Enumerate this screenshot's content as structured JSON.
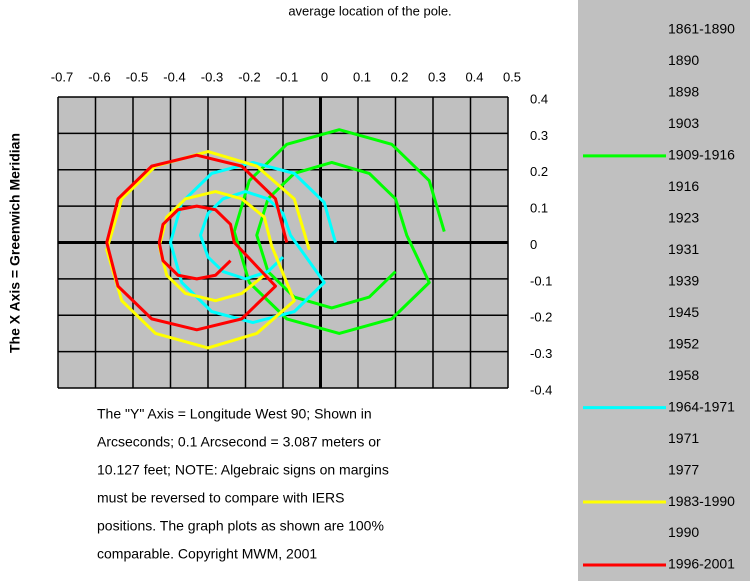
{
  "chart_data": {
    "type": "line",
    "subtitle": "average location of the pole.",
    "ylabel": "The X Axis = Greenwich Meridian",
    "note": [
      "The \"Y\" Axis = Longitude West 90; Shown in",
      "Arcseconds;  0.1 Arcsecond = 3.087 meters or",
      "10.127 feet; NOTE:  Algebraic signs on margins",
      "must be reversed to compare with IERS",
      "positions.  The graph plots as shown are 100%",
      "comparable.  Copyright MWM, 2001"
    ],
    "xlim": [
      -0.7,
      0.5
    ],
    "xticks": [
      -0.7,
      -0.6,
      -0.5,
      -0.4,
      -0.3,
      -0.2,
      -0.1,
      0,
      0.1,
      0.2,
      0.3,
      0.4,
      0.5
    ],
    "ylim": [
      -0.4,
      0.4
    ],
    "yticks": [
      0.4,
      0.3,
      0.2,
      0.1,
      0,
      -0.1,
      -0.2,
      -0.3,
      -0.4
    ],
    "grid": true,
    "series": [
      {
        "name": "1861-1890"
      },
      {
        "name": "1890"
      },
      {
        "name": "1898"
      },
      {
        "name": "1903"
      },
      {
        "name": "1909-1916",
        "color": "#00ff00",
        "x": [
          0.33,
          0.29,
          0.19,
          0.05,
          -0.09,
          -0.19,
          -0.23,
          -0.19,
          -0.09,
          0.05,
          0.19,
          0.29,
          0.23,
          0.2,
          0.13,
          0.03,
          -0.07,
          -0.14,
          -0.17,
          -0.14,
          -0.07,
          0.03,
          0.13,
          0.2
        ],
        "values": [
          0.03,
          0.17,
          0.27,
          0.31,
          0.27,
          0.17,
          0.03,
          -0.11,
          -0.21,
          -0.25,
          -0.21,
          -0.11,
          0.02,
          0.12,
          0.19,
          0.22,
          0.19,
          0.12,
          0.02,
          -0.08,
          -0.15,
          -0.18,
          -0.15,
          -0.08
        ]
      },
      {
        "name": "1916"
      },
      {
        "name": "1923"
      },
      {
        "name": "1931"
      },
      {
        "name": "1939"
      },
      {
        "name": "1945"
      },
      {
        "name": "1952"
      },
      {
        "name": "1958"
      },
      {
        "name": "1964-1971",
        "color": "#00ffff",
        "x": [
          0.04,
          0.01,
          -0.07,
          -0.18,
          -0.29,
          -0.37,
          -0.4,
          -0.37,
          -0.29,
          -0.18,
          -0.07,
          0.01,
          -0.08,
          -0.1,
          -0.14,
          -0.2,
          -0.26,
          -0.3,
          -0.32,
          -0.3,
          -0.26,
          -0.2,
          -0.14,
          -0.1
        ],
        "values": [
          0.0,
          0.11,
          0.19,
          0.22,
          0.19,
          0.11,
          0,
          -0.11,
          -0.19,
          -0.22,
          -0.19,
          -0.11,
          0.02,
          0.08,
          0.12,
          0.14,
          0.12,
          0.08,
          0.02,
          -0.04,
          -0.08,
          -0.1,
          -0.08,
          -0.04
        ]
      },
      {
        "name": "1971"
      },
      {
        "name": "1977"
      },
      {
        "name": "1983-1990",
        "color": "#ffff00",
        "x": [
          -0.03,
          -0.07,
          -0.17,
          -0.3,
          -0.44,
          -0.53,
          -0.57,
          -0.53,
          -0.44,
          -0.3,
          -0.17,
          -0.07,
          -0.13,
          -0.15,
          -0.21,
          -0.28,
          -0.36,
          -0.41,
          -0.43,
          -0.41,
          -0.36,
          -0.28,
          -0.21,
          -0.15
        ],
        "values": [
          -0.02,
          0.12,
          0.21,
          0.25,
          0.21,
          0.12,
          -0.02,
          -0.16,
          -0.25,
          -0.29,
          -0.25,
          -0.16,
          -0.01,
          0.07,
          0.12,
          0.14,
          0.12,
          0.07,
          -0.01,
          -0.09,
          -0.14,
          -0.16,
          -0.14,
          -0.09
        ]
      },
      {
        "name": "1990"
      },
      {
        "name": "1996-2001",
        "color": "#ff0000",
        "x": [
          -0.09,
          -0.12,
          -0.21,
          -0.33,
          -0.45,
          -0.54,
          -0.57,
          -0.54,
          -0.45,
          -0.33,
          -0.21,
          -0.12,
          -0.23,
          -0.24,
          -0.28,
          -0.33,
          -0.38,
          -0.42,
          -0.43,
          -0.42,
          -0.38,
          -0.33,
          -0.28,
          -0.24
        ],
        "values": [
          0,
          0.12,
          0.21,
          0.24,
          0.21,
          0.12,
          0,
          -0.12,
          -0.21,
          -0.24,
          -0.21,
          -0.12,
          0,
          0.05,
          0.09,
          0.1,
          0.09,
          0.05,
          0,
          -0.05,
          -0.09,
          -0.1,
          -0.09,
          -0.05
        ]
      }
    ]
  }
}
